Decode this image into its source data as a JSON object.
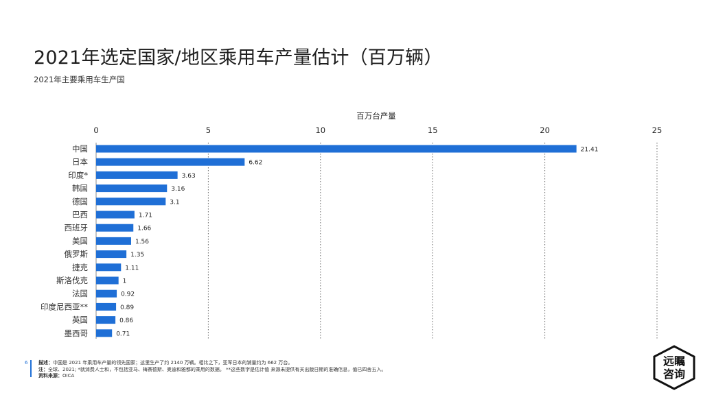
{
  "header": {
    "title": "2021年选定国家/地区乘用车产量估计（百万辆）",
    "subtitle": "2021年主要乘用车生产国"
  },
  "chart_data": {
    "type": "bar",
    "orientation": "horizontal",
    "xlabel": "百万台产量",
    "xlim": [
      0,
      25
    ],
    "xticks": [
      "0",
      "5",
      "10",
      "15",
      "20",
      "25"
    ],
    "grid": "vertical dotted",
    "categories": [
      "中国",
      "日本",
      "印度*",
      "韩国",
      "德国",
      "巴西",
      "西班牙",
      "美国",
      "俄罗斯",
      "捷克",
      "斯洛伐克",
      "法国",
      "印度尼西亚**",
      "英国",
      "墨西哥"
    ],
    "values": [
      21.41,
      6.62,
      3.63,
      3.16,
      3.1,
      1.71,
      1.66,
      1.56,
      1.35,
      1.11,
      1,
      0.92,
      0.89,
      0.86,
      0.71
    ],
    "value_labels": [
      "21.41",
      "6.62",
      "3.63",
      "3.16",
      "3.1",
      "1.71",
      "1.66",
      "1.56",
      "1.35",
      "1.11",
      "1",
      "0.92",
      "0.89",
      "0.86",
      "0.71"
    ],
    "bar_color": "#1f6fd6"
  },
  "footer": {
    "page_number": "6",
    "desc_label": "描述：",
    "desc_text": "中国是 2021 年乘用车产量的领先国家；这里生产了约 2140 万辆。相比之下，亚军日本的销量约为 662 万台。",
    "note_label": "注：",
    "note_text": "全球、2021; *就消费人士和，不包括亚马、梅赛德斯、奥迪和雅都的乘用的数据。 **这些数字是估计值 来源未提供有关出版日期的准确信息，值已四舍五入。",
    "source_label": "资料来源：",
    "source_text": "OICA"
  },
  "logo": {
    "line1": "远瞩",
    "line2": "咨询"
  }
}
